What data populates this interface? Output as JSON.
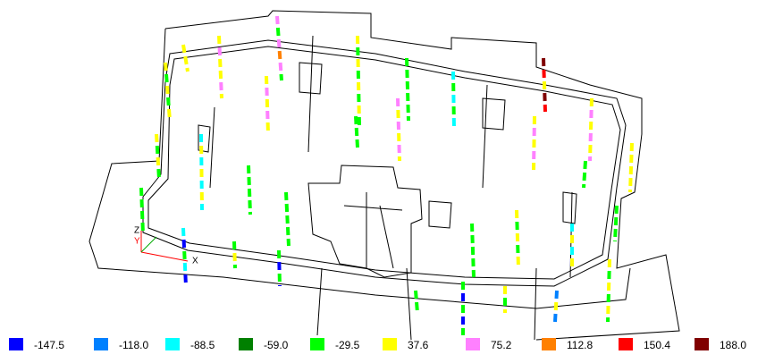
{
  "triad": {
    "z": "Z",
    "y": "Y",
    "x": "X"
  },
  "legend": {
    "items": [
      {
        "color": "#0000ff",
        "label": "-147.5"
      },
      {
        "color": "#0080ff",
        "label": "-118.0"
      },
      {
        "color": "#00ffff",
        "label": "-88.5"
      },
      {
        "color": "#008000",
        "label": "-59.0"
      },
      {
        "color": "#00ff00",
        "label": "-29.5"
      },
      {
        "color": "#ffff00",
        "label": "37.6"
      },
      {
        "color": "#ff80ff",
        "label": "75.2"
      },
      {
        "color": "#ff8000",
        "label": "112.8"
      },
      {
        "color": "#ff0000",
        "label": "150.4"
      },
      {
        "color": "#800000",
        "label": "188.0"
      }
    ]
  }
}
